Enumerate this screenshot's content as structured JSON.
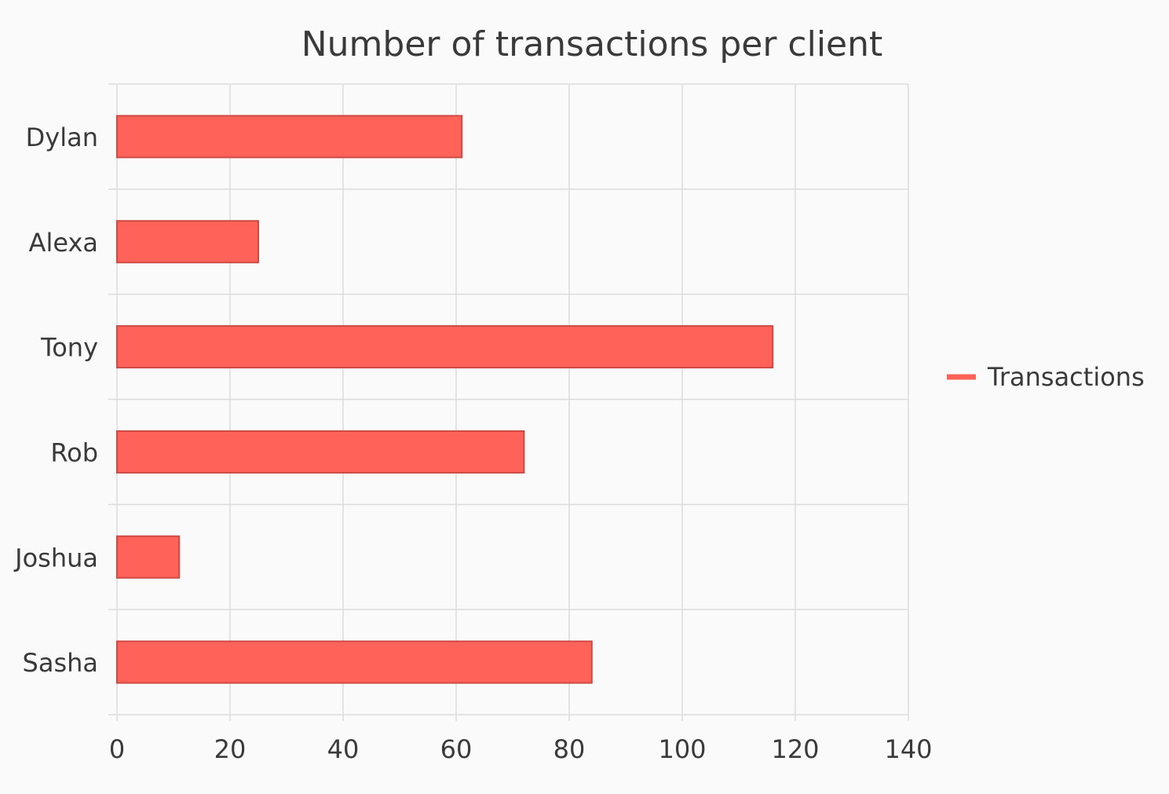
{
  "chart_data": {
    "type": "bar",
    "orientation": "horizontal",
    "title": "Number of transactions per client",
    "xlabel": "",
    "ylabel": "",
    "categories": [
      "Dylan",
      "Alexa",
      "Tony",
      "Rob",
      "Joshua",
      "Sasha"
    ],
    "series": [
      {
        "name": "Transactions",
        "values": [
          61,
          25,
          116,
          72,
          11,
          84
        ],
        "color": "#ff6259",
        "border_color": "#cc4a43"
      }
    ],
    "xlim": [
      0,
      140
    ],
    "xticks": [
      "0",
      "20",
      "40",
      "60",
      "80",
      "100",
      "120",
      "140"
    ],
    "grid": true,
    "legend_position": "right"
  },
  "colors": {
    "background": "#fafafa",
    "grid": "#dcdcdc",
    "text": "#3a3a3a"
  }
}
